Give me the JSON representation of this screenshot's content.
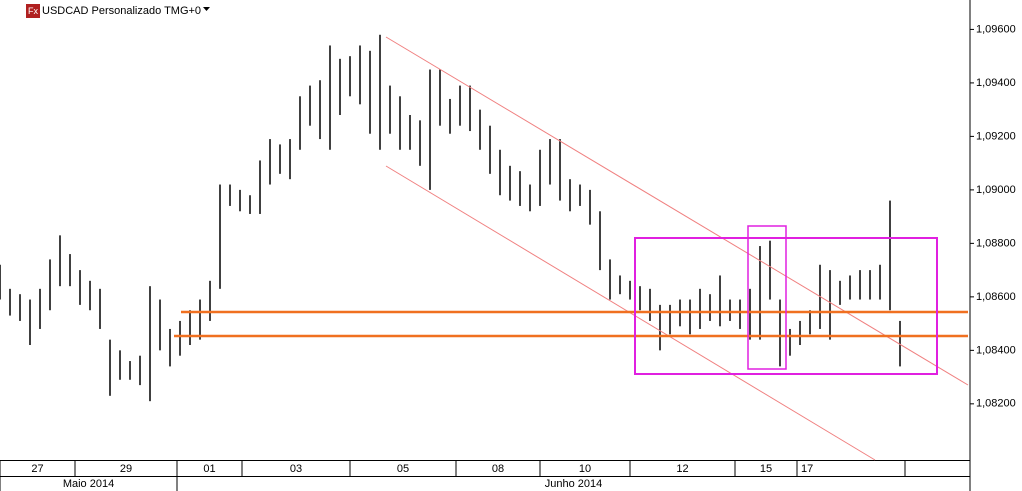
{
  "chart_data": {
    "type": "range-bar",
    "title": "USDCAD Personalizado TMG+0",
    "icon": "Fx",
    "color": "#000000",
    "xlim": [
      0,
      97
    ],
    "ylim": [
      1.0799,
      1.0971
    ],
    "yticks": [
      {
        "value": 1.096,
        "label": "1,09600"
      },
      {
        "value": 1.094,
        "label": "1,09400"
      },
      {
        "value": 1.092,
        "label": "1,09200"
      },
      {
        "value": 1.09,
        "label": "1,09000"
      },
      {
        "value": 1.088,
        "label": "1,08800"
      },
      {
        "value": 1.086,
        "label": "1,08600"
      },
      {
        "value": 1.084,
        "label": "1,08400"
      },
      {
        "value": 1.082,
        "label": "1,08200"
      }
    ],
    "xticks": [
      {
        "value": 0,
        "label": "27"
      },
      {
        "value": 7.5,
        "label": "29"
      },
      {
        "value": 17.7,
        "label": "01"
      },
      {
        "value": 24.2,
        "label": "03"
      },
      {
        "value": 35,
        "label": "05"
      },
      {
        "value": 45.6,
        "label": "08"
      },
      {
        "value": 54,
        "label": "10"
      },
      {
        "value": 63,
        "label": "12"
      },
      {
        "value": 73.5,
        "label": "15"
      },
      {
        "value": 79.7,
        "label": "17"
      },
      {
        "value": 90.5,
        "label": ""
      }
    ],
    "month_ticks": [
      {
        "value": 0,
        "label": "Maio 2014"
      },
      {
        "value": 17.7,
        "label": "Junho 2014"
      }
    ],
    "x": [
      0,
      1,
      2,
      3,
      4,
      5,
      6,
      7,
      8,
      9,
      10,
      11,
      12,
      13,
      14,
      15,
      16,
      17,
      18,
      19,
      20,
      21,
      22,
      23,
      24,
      25,
      26,
      27,
      28,
      29,
      30,
      31,
      32,
      33,
      34,
      35,
      36,
      37,
      38,
      39,
      40,
      41,
      42,
      43,
      44,
      45,
      46,
      47,
      48,
      49,
      50,
      51,
      52,
      53,
      54,
      55,
      56,
      57,
      58,
      59,
      60,
      61,
      62,
      63,
      64,
      65,
      66,
      67,
      68,
      69,
      70,
      71,
      72,
      73,
      74,
      75,
      76,
      77,
      78,
      79,
      80,
      81,
      82,
      83,
      84,
      85,
      86,
      87,
      88,
      89,
      90
    ],
    "high": [
      1.0872,
      1.0863,
      1.0861,
      1.0859,
      1.0863,
      1.0874,
      1.0883,
      1.0876,
      1.087,
      1.0866,
      1.0863,
      1.0844,
      1.084,
      1.0836,
      1.0838,
      1.0864,
      1.0859,
      1.0848,
      1.0851,
      1.0855,
      1.0859,
      1.0866,
      1.0902,
      1.0902,
      1.09,
      1.0898,
      1.0911,
      1.0919,
      1.0917,
      1.0919,
      1.0935,
      1.0939,
      1.0941,
      1.0954,
      1.0949,
      1.095,
      1.0954,
      1.0952,
      1.0958,
      1.0939,
      1.0935,
      1.0928,
      1.0926,
      1.0945,
      1.0945,
      1.0934,
      1.0939,
      1.0939,
      1.093,
      1.0924,
      1.0915,
      1.0909,
      1.0907,
      1.0902,
      1.0915,
      1.0919,
      1.0919,
      1.0904,
      1.0902,
      1.09,
      1.0892,
      1.0874,
      1.0868,
      1.0866,
      1.0864,
      1.0863,
      1.0857,
      1.0857,
      1.0859,
      1.0859,
      1.0863,
      1.0861,
      1.0868,
      1.0859,
      1.0859,
      1.0863,
      1.0879,
      1.0881,
      1.0859,
      1.0848,
      1.0851,
      1.0855,
      1.0872,
      1.087,
      1.0866,
      1.0868,
      1.087,
      1.087,
      1.0872,
      1.0896,
      1.0851
    ],
    "low": [
      1.0859,
      1.0853,
      1.0851,
      1.0842,
      1.0848,
      1.0855,
      1.0864,
      1.0864,
      1.0857,
      1.0855,
      1.0848,
      1.0823,
      1.0829,
      1.0829,
      1.0827,
      1.0821,
      1.084,
      1.0834,
      1.0838,
      1.0842,
      1.0844,
      1.0851,
      1.0863,
      1.0894,
      1.0892,
      1.0891,
      1.0891,
      1.0902,
      1.0906,
      1.0904,
      1.0915,
      1.0924,
      1.0919,
      1.0915,
      1.0928,
      1.0935,
      1.0932,
      1.0921,
      1.0915,
      1.0921,
      1.0915,
      1.0915,
      1.0909,
      1.09,
      1.0924,
      1.0921,
      1.0924,
      1.0922,
      1.0915,
      1.0906,
      1.0898,
      1.0896,
      1.0894,
      1.0892,
      1.0894,
      1.0902,
      1.0896,
      1.0892,
      1.0894,
      1.0887,
      1.087,
      1.0859,
      1.0861,
      1.0859,
      1.0855,
      1.0851,
      1.084,
      1.0846,
      1.0849,
      1.0846,
      1.0848,
      1.0851,
      1.0849,
      1.0851,
      1.0848,
      1.0844,
      1.0844,
      1.0859,
      1.0834,
      1.0838,
      1.0842,
      1.0846,
      1.0848,
      1.0844,
      1.0857,
      1.0859,
      1.0859,
      1.0859,
      1.0859,
      1.0855,
      1.0834
    ]
  }
}
